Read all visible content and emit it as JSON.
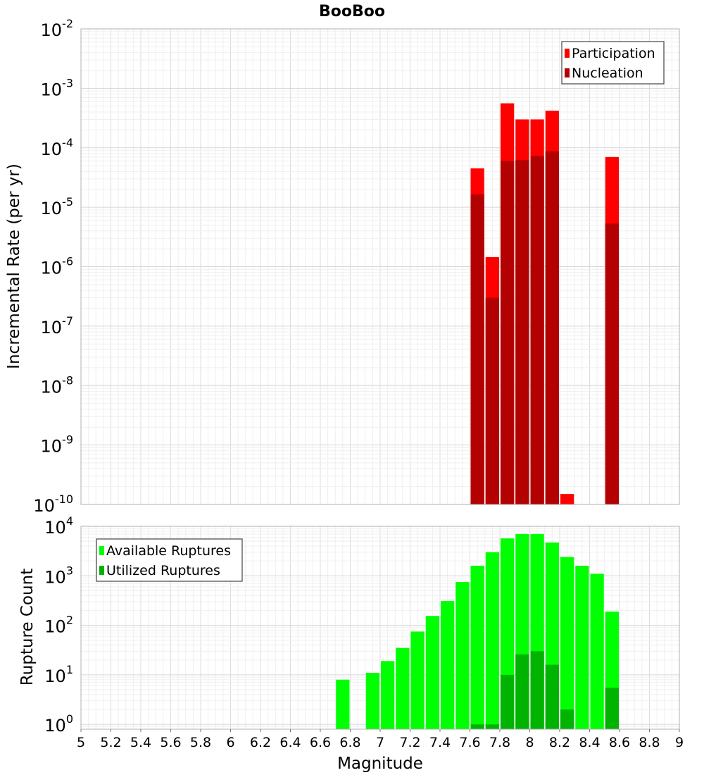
{
  "chart_data": [
    {
      "type": "bar",
      "title": "BooBoo",
      "xlabel": "",
      "ylabel": "Incremental Rate (per yr)",
      "y_scale": "log",
      "ylim": [
        1e-10,
        0.01
      ],
      "xlim": [
        5,
        9
      ],
      "grid": true,
      "legend_position": "top-right",
      "bar_width": 0.1,
      "y_tick_labels": [
        {
          "base": "10",
          "exp": "-10",
          "value": 1e-10
        },
        {
          "base": "10",
          "exp": "-9",
          "value": 1e-09
        },
        {
          "base": "10",
          "exp": "-8",
          "value": 1e-08
        },
        {
          "base": "10",
          "exp": "-7",
          "value": 1e-07
        },
        {
          "base": "10",
          "exp": "-6",
          "value": 1e-06
        },
        {
          "base": "10",
          "exp": "-5",
          "value": 1e-05
        },
        {
          "base": "10",
          "exp": "-4",
          "value": 0.0001
        },
        {
          "base": "10",
          "exp": "-3",
          "value": 0.001
        },
        {
          "base": "10",
          "exp": "-2",
          "value": 0.01
        }
      ],
      "series": [
        {
          "name": "Participation",
          "color": "#FF0000",
          "x": [
            7.65,
            7.75,
            7.85,
            7.95,
            8.05,
            8.15,
            8.25,
            8.55
          ],
          "values": [
            4.5e-05,
            1.45e-06,
            0.00056,
            0.0003,
            0.0003,
            0.00042,
            1.5e-10,
            7e-05
          ]
        },
        {
          "name": "Nucleation",
          "color": "#B30000",
          "x": [
            7.65,
            7.75,
            7.85,
            7.95,
            8.05,
            8.15,
            8.55
          ],
          "values": [
            1.65e-05,
            3e-07,
            6e-05,
            6.2e-05,
            7.3e-05,
            8.7e-05,
            5.3e-06
          ]
        }
      ]
    },
    {
      "type": "bar",
      "title": "",
      "xlabel": "Magnitude",
      "ylabel": "Rupture Count",
      "y_scale": "log",
      "ylim": [
        0.8,
        10000
      ],
      "xlim": [
        5,
        9
      ],
      "grid": true,
      "legend_position": "top-left",
      "bar_width": 0.1,
      "y_tick_labels": [
        {
          "base": "10",
          "exp": "0",
          "value": 1
        },
        {
          "base": "10",
          "exp": "1",
          "value": 10
        },
        {
          "base": "10",
          "exp": "2",
          "value": 100
        },
        {
          "base": "10",
          "exp": "3",
          "value": 1000
        },
        {
          "base": "10",
          "exp": "4",
          "value": 10000
        }
      ],
      "x_tick_labels": [
        "5",
        "5.2",
        "5.4",
        "5.6",
        "5.8",
        "6",
        "6.2",
        "6.4",
        "6.6",
        "6.8",
        "7",
        "7.2",
        "7.4",
        "7.6",
        "7.8",
        "8",
        "8.2",
        "8.4",
        "8.6",
        "8.8",
        "9"
      ],
      "x_tick_values": [
        5,
        5.2,
        5.4,
        5.6,
        5.8,
        6,
        6.2,
        6.4,
        6.6,
        6.8,
        7,
        7.2,
        7.4,
        7.6,
        7.8,
        8,
        8.2,
        8.4,
        8.6,
        8.8,
        9
      ],
      "series": [
        {
          "name": "Available Ruptures",
          "color": "#00FF00",
          "x": [
            6.75,
            6.95,
            7.05,
            7.15,
            7.25,
            7.35,
            7.45,
            7.55,
            7.65,
            7.75,
            7.85,
            7.95,
            8.05,
            8.15,
            8.25,
            8.35,
            8.45,
            8.55
          ],
          "values": [
            8,
            11,
            19,
            35,
            75,
            155,
            310,
            750,
            1600,
            3000,
            5700,
            7000,
            7000,
            4700,
            2400,
            1600,
            1100,
            190
          ]
        },
        {
          "name": "Utilized Ruptures",
          "color": "#00B300",
          "x": [
            7.65,
            7.75,
            7.85,
            7.95,
            8.05,
            8.15,
            8.25,
            8.55
          ],
          "values": [
            1,
            1,
            10,
            26,
            30,
            16,
            2,
            5.5
          ]
        }
      ]
    }
  ]
}
